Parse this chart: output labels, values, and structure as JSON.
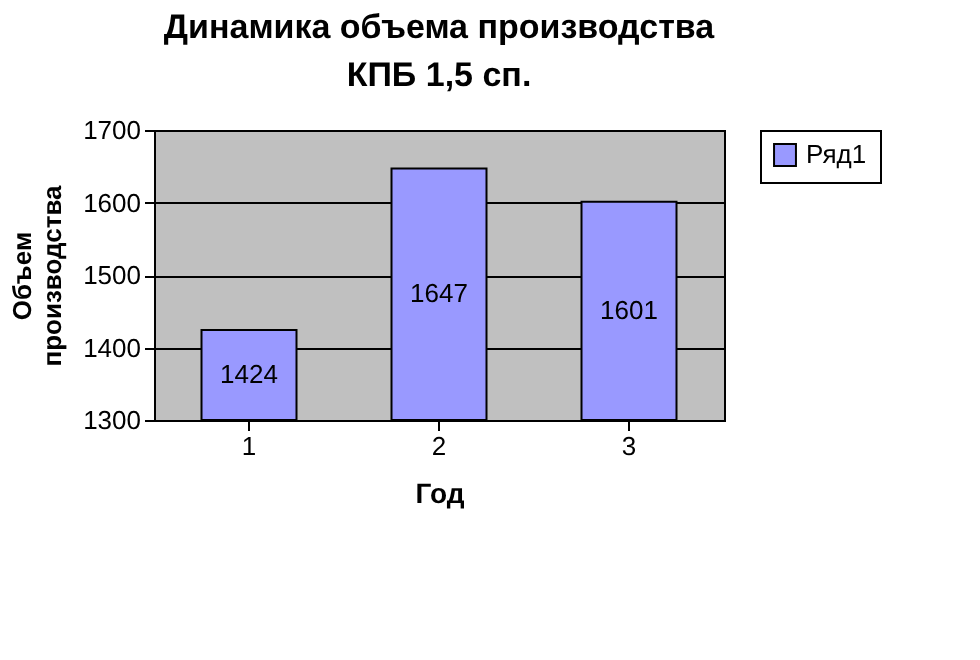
{
  "chart_data": {
    "type": "bar",
    "title": "Динамика объема производства КПБ 1,5 сп.",
    "xlabel": "Год",
    "ylabel": "Объем производства",
    "categories": [
      "1",
      "2",
      "3"
    ],
    "series": [
      {
        "name": "Ряд1",
        "color": "#9999ff",
        "values": [
          1424,
          1647,
          1601
        ]
      }
    ],
    "ylim": [
      1300,
      1700
    ],
    "yticks": [
      1300,
      1400,
      1500,
      1600,
      1700
    ],
    "grid": "y",
    "legend": "right",
    "data_labels": true
  }
}
